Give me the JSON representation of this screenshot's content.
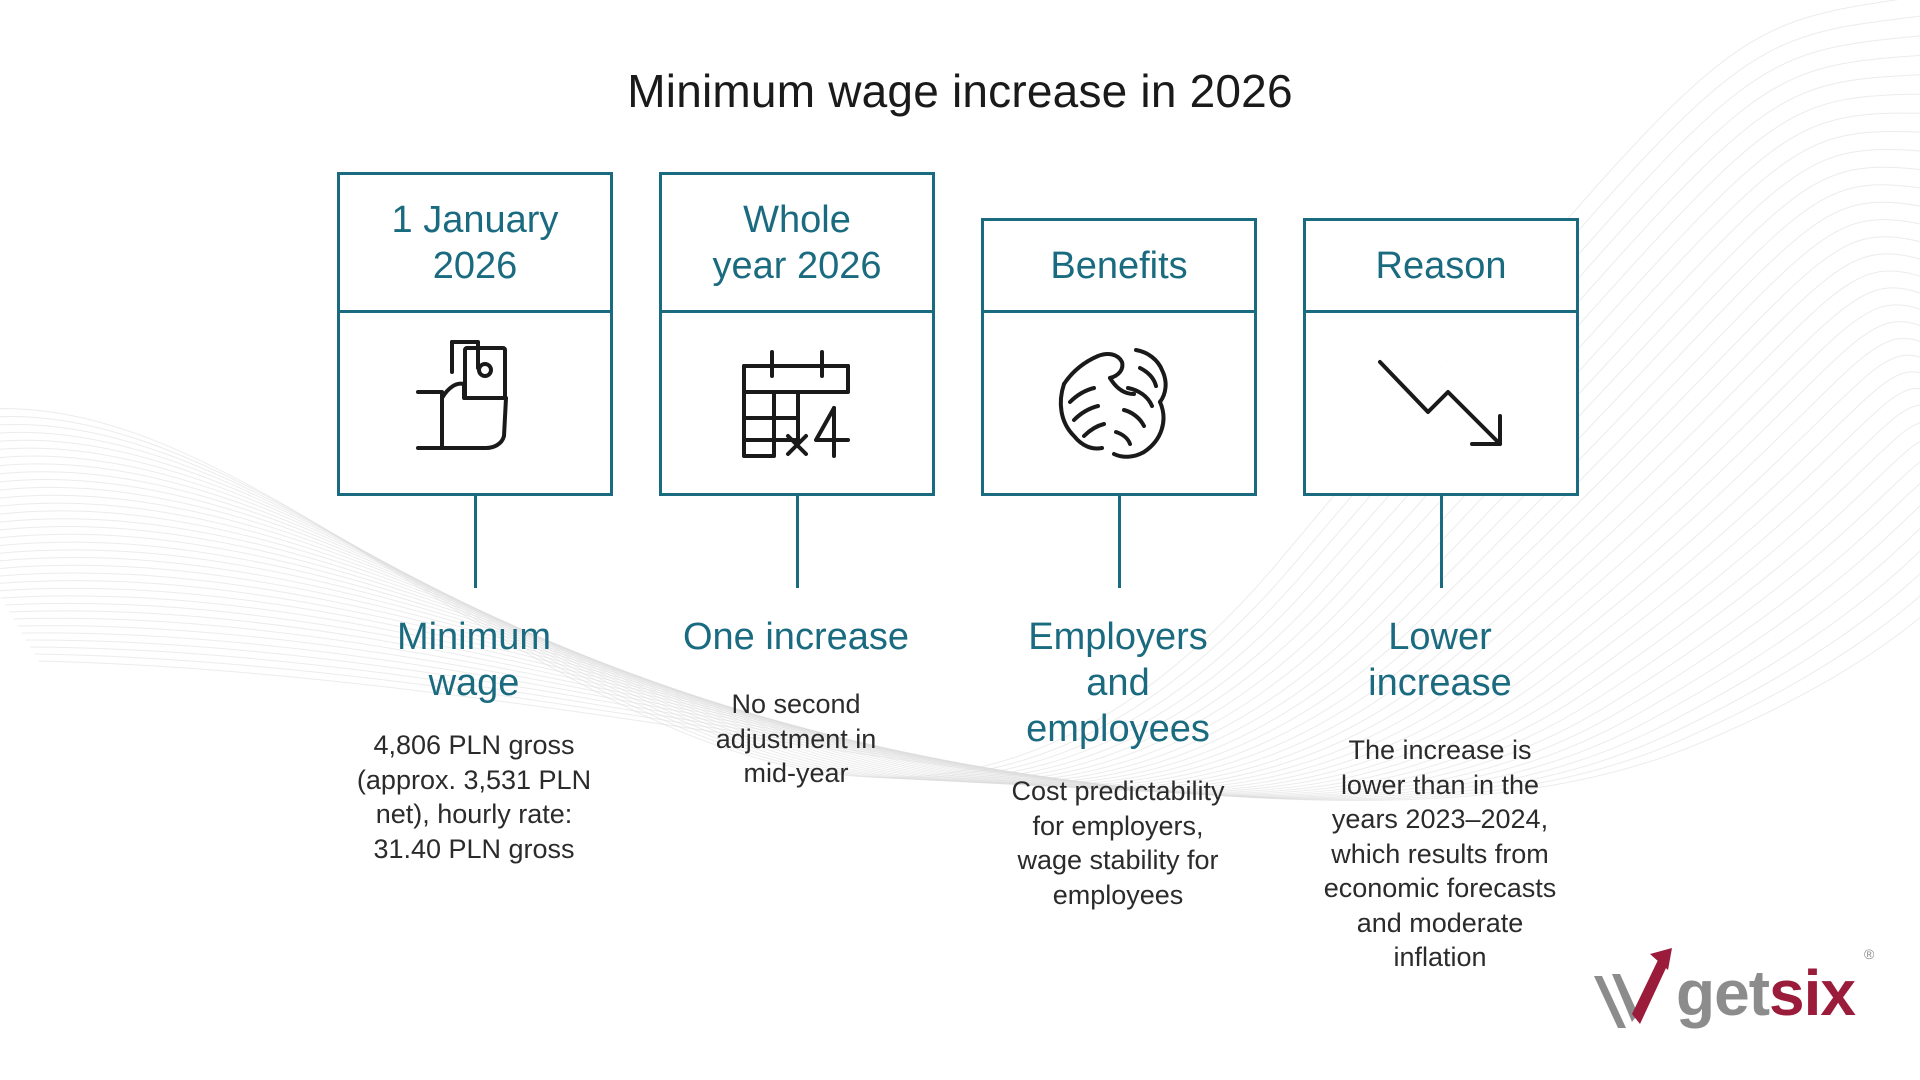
{
  "title": "Minimum wage increase in 2026",
  "colors": {
    "accent": "#1b6b80",
    "body_text": "#2b2b2b",
    "logo_gray": "#8c8c8c",
    "logo_red": "#9a1b3a"
  },
  "columns": [
    {
      "header": "1 January\n2026",
      "icon": "hand-holding-money-icon",
      "heading": "Minimum\nwage",
      "description": "4,806 PLN gross\n(approx. 3,531 PLN\nnet), hourly rate:\n31.40 PLN gross"
    },
    {
      "header": "Whole\nyear 2026",
      "icon": "calendar-times-four-icon",
      "heading": "One increase",
      "description": "No second\nadjustment in\nmid-year"
    },
    {
      "header": "Benefits",
      "icon": "handshake-icon",
      "heading": "Employers\nand\nemployees",
      "description": "Cost predictability\nfor employers,\nwage stability for\nemployees"
    },
    {
      "header": "Reason",
      "icon": "trend-down-arrow-icon",
      "heading": "Lower\nincrease",
      "description": "The increase is\nlower than in the\nyears 2023–2024,\nwhich results from\neconomic forecasts\nand moderate\ninflation"
    }
  ],
  "logo": {
    "text_gray": "get",
    "text_red": "six",
    "registered": "®"
  }
}
